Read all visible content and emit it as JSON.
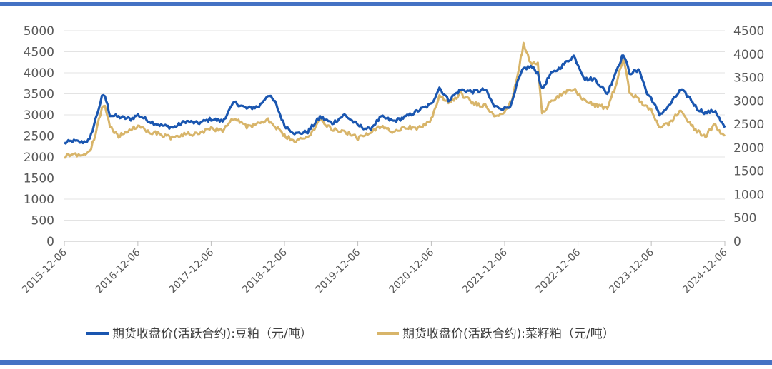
{
  "chart_data": {
    "type": "line",
    "title": "",
    "xlabel": "",
    "x_ticks": [
      "2015-12-06",
      "2016-12-06",
      "2017-12-06",
      "2018-12-06",
      "2019-12-06",
      "2020-12-06",
      "2021-12-06",
      "2022-12-06",
      "2023-12-06",
      "2024-12-06"
    ],
    "y_left": {
      "ylim": [
        0,
        5000
      ],
      "ticks": [
        "5000",
        "4500",
        "4000",
        "3500",
        "3000",
        "2500",
        "2000",
        "1500",
        "1000",
        "500",
        "0"
      ]
    },
    "y_right": {
      "ylim": [
        0,
        4500
      ],
      "ticks": [
        "4500",
        "4000",
        "3500",
        "3000",
        "2500",
        "2000",
        "1500",
        "1000",
        "500",
        "0"
      ]
    },
    "grid": "horizontal",
    "legend_position": "bottom",
    "series": [
      {
        "name": "期货收盘价(活跃合约):豆粕（元/吨）",
        "axis": "left",
        "color": "#1a56b0",
        "points": [
          [
            "2015-12-06",
            2330
          ],
          [
            "2016-01-15",
            2380
          ],
          [
            "2016-03-01",
            2350
          ],
          [
            "2016-04-10",
            2400
          ],
          [
            "2016-05-10",
            2900
          ],
          [
            "2016-06-10",
            3420
          ],
          [
            "2016-06-25",
            3450
          ],
          [
            "2016-07-20",
            3000
          ],
          [
            "2016-09-01",
            2950
          ],
          [
            "2016-11-01",
            2900
          ],
          [
            "2016-12-06",
            3000
          ],
          [
            "2017-02-01",
            2850
          ],
          [
            "2017-04-01",
            2750
          ],
          [
            "2017-06-01",
            2700
          ],
          [
            "2017-08-01",
            2850
          ],
          [
            "2017-10-01",
            2800
          ],
          [
            "2017-12-06",
            2900
          ],
          [
            "2018-02-01",
            2850
          ],
          [
            "2018-04-01",
            3300
          ],
          [
            "2018-06-01",
            3150
          ],
          [
            "2018-08-01",
            3200
          ],
          [
            "2018-09-15",
            3480
          ],
          [
            "2018-10-20",
            3300
          ],
          [
            "2018-12-06",
            2750
          ],
          [
            "2019-02-01",
            2550
          ],
          [
            "2019-04-01",
            2600
          ],
          [
            "2019-06-01",
            2950
          ],
          [
            "2019-08-01",
            2800
          ],
          [
            "2019-10-01",
            3000
          ],
          [
            "2019-12-06",
            2750
          ],
          [
            "2020-02-01",
            2650
          ],
          [
            "2020-04-01",
            2950
          ],
          [
            "2020-06-01",
            2850
          ],
          [
            "2020-08-01",
            2950
          ],
          [
            "2020-10-01",
            3100
          ],
          [
            "2020-12-06",
            3250
          ],
          [
            "2021-01-15",
            3650
          ],
          [
            "2021-03-01",
            3350
          ],
          [
            "2021-05-01",
            3600
          ],
          [
            "2021-07-01",
            3550
          ],
          [
            "2021-09-01",
            3600
          ],
          [
            "2021-10-15",
            3200
          ],
          [
            "2021-12-06",
            3150
          ],
          [
            "2022-01-10",
            3250
          ],
          [
            "2022-02-10",
            3800
          ],
          [
            "2022-03-10",
            4100
          ],
          [
            "2022-04-15",
            4150
          ],
          [
            "2022-05-20",
            4000
          ],
          [
            "2022-06-10",
            3600
          ],
          [
            "2022-07-20",
            3950
          ],
          [
            "2022-09-01",
            4100
          ],
          [
            "2022-11-15",
            4400
          ],
          [
            "2022-12-06",
            4200
          ],
          [
            "2023-01-10",
            3850
          ],
          [
            "2023-03-01",
            3850
          ],
          [
            "2023-05-01",
            3500
          ],
          [
            "2023-06-10",
            4000
          ],
          [
            "2023-07-20",
            4450
          ],
          [
            "2023-08-20",
            4000
          ],
          [
            "2023-10-10",
            4050
          ],
          [
            "2023-11-15",
            3500
          ],
          [
            "2023-12-06",
            3400
          ],
          [
            "2024-01-15",
            3000
          ],
          [
            "2024-03-01",
            3200
          ],
          [
            "2024-05-01",
            3600
          ],
          [
            "2024-06-15",
            3400
          ],
          [
            "2024-07-20",
            3150
          ],
          [
            "2024-09-01",
            3050
          ],
          [
            "2024-10-20",
            3100
          ],
          [
            "2024-11-15",
            2850
          ],
          [
            "2024-12-06",
            2700
          ]
        ]
      },
      {
        "name": "期货收盘价(活跃合约):菜籽粕（元/吨）",
        "axis": "right",
        "color": "#d8b56a",
        "points": [
          [
            "2015-12-06",
            1800
          ],
          [
            "2016-01-15",
            1880
          ],
          [
            "2016-03-01",
            1830
          ],
          [
            "2016-04-10",
            1900
          ],
          [
            "2016-05-10",
            2300
          ],
          [
            "2016-06-10",
            2860
          ],
          [
            "2016-06-25",
            2900
          ],
          [
            "2016-07-20",
            2450
          ],
          [
            "2016-09-01",
            2250
          ],
          [
            "2016-11-01",
            2380
          ],
          [
            "2016-12-06",
            2450
          ],
          [
            "2017-02-01",
            2350
          ],
          [
            "2017-04-01",
            2280
          ],
          [
            "2017-06-01",
            2200
          ],
          [
            "2017-08-01",
            2300
          ],
          [
            "2017-10-01",
            2280
          ],
          [
            "2017-12-06",
            2400
          ],
          [
            "2018-02-01",
            2380
          ],
          [
            "2018-04-01",
            2650
          ],
          [
            "2018-06-01",
            2450
          ],
          [
            "2018-08-01",
            2500
          ],
          [
            "2018-09-15",
            2600
          ],
          [
            "2018-10-20",
            2450
          ],
          [
            "2018-12-06",
            2250
          ],
          [
            "2019-02-01",
            2130
          ],
          [
            "2019-04-01",
            2220
          ],
          [
            "2019-06-01",
            2600
          ],
          [
            "2019-08-01",
            2400
          ],
          [
            "2019-10-01",
            2350
          ],
          [
            "2019-12-06",
            2200
          ],
          [
            "2020-02-01",
            2300
          ],
          [
            "2020-04-01",
            2450
          ],
          [
            "2020-06-01",
            2350
          ],
          [
            "2020-08-01",
            2450
          ],
          [
            "2020-10-01",
            2400
          ],
          [
            "2020-12-06",
            2600
          ],
          [
            "2021-01-15",
            3100
          ],
          [
            "2021-03-01",
            2950
          ],
          [
            "2021-05-01",
            3150
          ],
          [
            "2021-07-01",
            2950
          ],
          [
            "2021-09-01",
            2900
          ],
          [
            "2021-10-15",
            2700
          ],
          [
            "2021-12-06",
            2750
          ],
          [
            "2022-01-10",
            3000
          ],
          [
            "2022-02-10",
            3600
          ],
          [
            "2022-03-10",
            4200
          ],
          [
            "2022-04-15",
            3800
          ],
          [
            "2022-05-20",
            3800
          ],
          [
            "2022-06-10",
            2700
          ],
          [
            "2022-07-20",
            3000
          ],
          [
            "2022-09-01",
            3100
          ],
          [
            "2022-11-15",
            3250
          ],
          [
            "2022-12-06",
            3150
          ],
          [
            "2023-01-10",
            3000
          ],
          [
            "2023-03-01",
            2900
          ],
          [
            "2023-05-01",
            2850
          ],
          [
            "2023-06-10",
            3300
          ],
          [
            "2023-07-20",
            3900
          ],
          [
            "2023-08-20",
            3200
          ],
          [
            "2023-10-10",
            3000
          ],
          [
            "2023-11-15",
            2850
          ],
          [
            "2023-12-06",
            2800
          ],
          [
            "2024-01-15",
            2450
          ],
          [
            "2024-03-01",
            2500
          ],
          [
            "2024-05-01",
            2800
          ],
          [
            "2024-06-15",
            2500
          ],
          [
            "2024-07-20",
            2350
          ],
          [
            "2024-09-01",
            2250
          ],
          [
            "2024-10-20",
            2500
          ],
          [
            "2024-11-15",
            2300
          ],
          [
            "2024-12-06",
            2250
          ]
        ]
      }
    ]
  }
}
